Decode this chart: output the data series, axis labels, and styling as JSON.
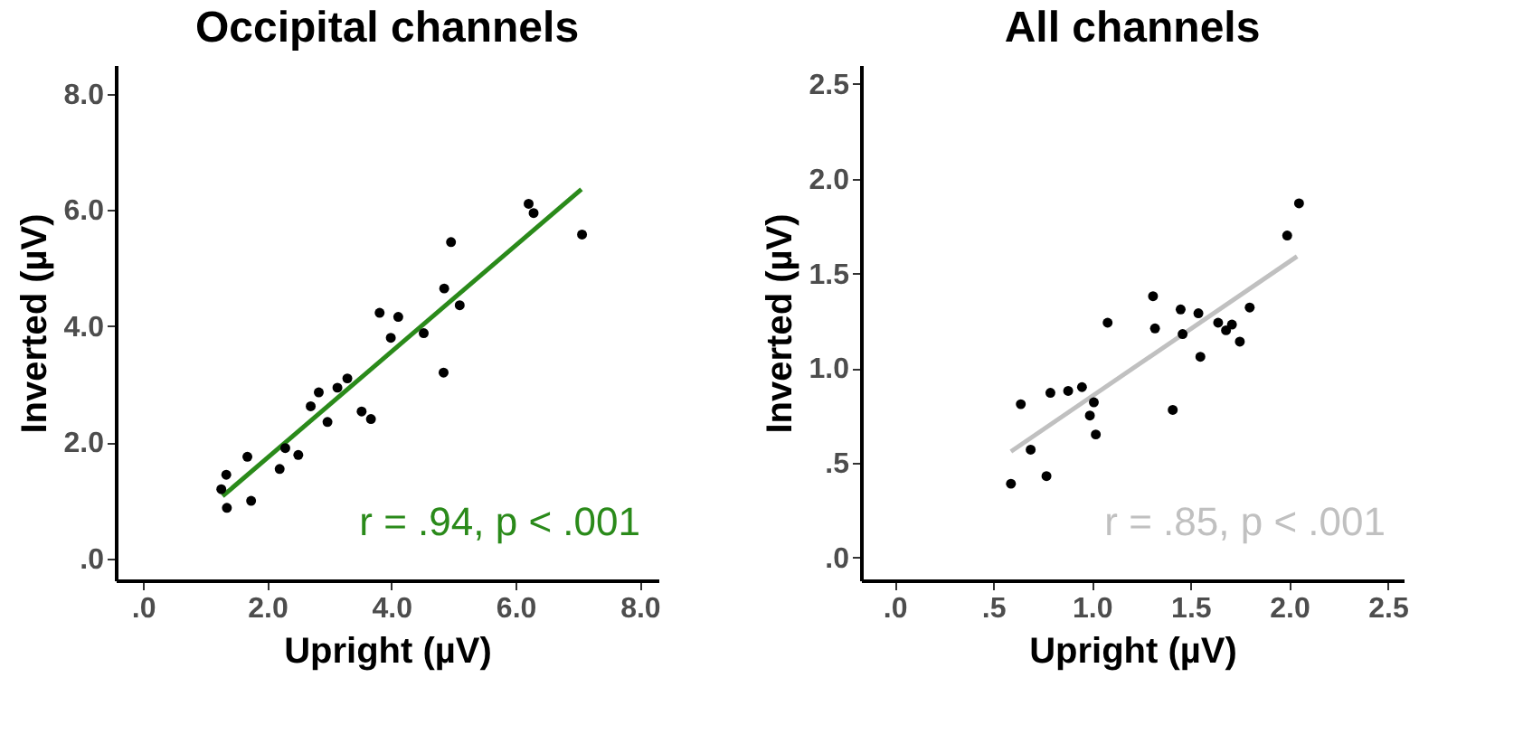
{
  "chart_data": [
    {
      "type": "scatter",
      "title": "Occipital channels",
      "xlabel": "Upright (µV)",
      "ylabel": "Inverted (µV)",
      "xlim": [
        -0.44,
        8.3
      ],
      "ylim": [
        -0.38,
        8.5
      ],
      "xticks": [
        {
          "value": 0,
          "label": ".0"
        },
        {
          "value": 2,
          "label": "2.0"
        },
        {
          "value": 4,
          "label": "4.0"
        },
        {
          "value": 6,
          "label": "6.0"
        },
        {
          "value": 8,
          "label": "8.0"
        }
      ],
      "yticks": [
        {
          "value": 0,
          "label": ".0"
        },
        {
          "value": 2,
          "label": "2.0"
        },
        {
          "value": 4,
          "label": "4.0"
        },
        {
          "value": 6,
          "label": "6.0"
        },
        {
          "value": 8,
          "label": "8.0"
        }
      ],
      "grid": false,
      "annotations": [
        "r = .94, p < .001"
      ],
      "series": [
        {
          "type": "scatter",
          "color": "#000000",
          "x": [
            1.26,
            1.34,
            1.35,
            1.68,
            1.74,
            2.2,
            2.29,
            2.5,
            2.7,
            2.83,
            2.97,
            3.13,
            3.29,
            3.52,
            3.67,
            3.81,
            3.99,
            4.11,
            4.52,
            4.84,
            4.85,
            4.96,
            5.1,
            6.21,
            6.29,
            7.07
          ],
          "values": [
            1.19,
            1.44,
            0.87,
            1.75,
            0.99,
            1.54,
            1.9,
            1.78,
            2.62,
            2.86,
            2.35,
            2.94,
            3.1,
            2.53,
            2.4,
            4.23,
            3.8,
            4.16,
            3.88,
            3.2,
            4.65,
            5.45,
            4.36,
            6.11,
            5.95,
            5.58
          ]
        },
        {
          "type": "line",
          "color": "#2a8a1a",
          "x": [
            1.28,
            7.06
          ],
          "values": [
            1.07,
            6.36
          ]
        }
      ]
    },
    {
      "type": "scatter",
      "title": "All channels",
      "xlabel": "Upright (µV)",
      "ylabel": "Inverted (µV)",
      "xlim": [
        -0.17,
        2.58
      ],
      "ylim": [
        -0.12,
        2.6
      ],
      "xticks": [
        {
          "value": 0,
          "label": ".0"
        },
        {
          "value": 0.5,
          "label": ".5"
        },
        {
          "value": 1,
          "label": "1.0"
        },
        {
          "value": 1.5,
          "label": "1.5"
        },
        {
          "value": 2,
          "label": "2.0"
        },
        {
          "value": 2.5,
          "label": "2.5"
        }
      ],
      "yticks": [
        {
          "value": 0,
          "label": ".0"
        },
        {
          "value": 0.5,
          "label": ".5"
        },
        {
          "value": 1,
          "label": "1.0"
        },
        {
          "value": 1.5,
          "label": "1.5"
        },
        {
          "value": 2,
          "label": "2.0"
        },
        {
          "value": 2.5,
          "label": "2.5"
        }
      ],
      "grid": false,
      "annotations": [
        "r = .85, p < .001"
      ],
      "series": [
        {
          "type": "scatter",
          "color": "#000000",
          "x": [
            0.59,
            0.64,
            0.69,
            0.77,
            0.79,
            0.88,
            0.95,
            0.99,
            1.01,
            1.02,
            1.08,
            1.31,
            1.32,
            1.41,
            1.45,
            1.46,
            1.54,
            1.55,
            1.64,
            1.68,
            1.71,
            1.75,
            1.8,
            1.99,
            2.05
          ],
          "values": [
            0.39,
            0.81,
            0.57,
            0.43,
            0.87,
            0.88,
            0.9,
            0.75,
            0.82,
            0.65,
            1.24,
            1.38,
            1.21,
            0.78,
            1.31,
            1.18,
            1.29,
            1.06,
            1.24,
            1.2,
            1.23,
            1.14,
            1.32,
            1.7,
            1.87
          ]
        },
        {
          "type": "line",
          "color": "#c0c0c0",
          "x": [
            0.59,
            2.04
          ],
          "values": [
            0.56,
            1.59
          ]
        }
      ]
    }
  ]
}
